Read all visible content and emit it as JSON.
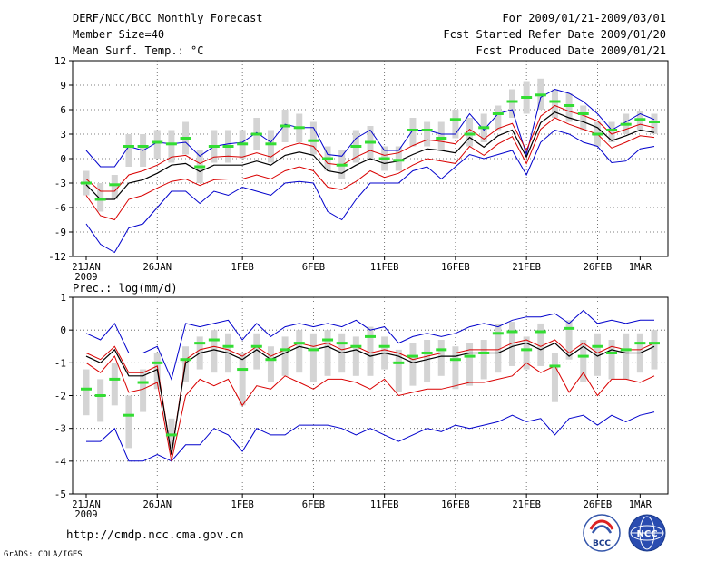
{
  "header": {
    "title": "DERF/NCC/BCC Monthly Forecast",
    "member_size": "Member Size=40",
    "variable": "Mean Surf. Temp.: °C",
    "period": "For 2009/01/21-2009/03/01",
    "started": "Fcst Started Refer Date 2009/01/20",
    "produced": "Fcst Produced Date 2009/01/21"
  },
  "footer": {
    "url": "http://cmdp.ncc.cma.gov.cn",
    "credit": "GrADS: COLA/IGES",
    "logo_bcc": "BCC",
    "logo_ncc": "NCC"
  },
  "colors": {
    "ensemble_mean": "#000000",
    "spread": "#d90000",
    "envelope": "#0000cc",
    "box": "#d4d4d4",
    "median": "#33dd33"
  },
  "chart_data": [
    {
      "type": "line",
      "title": "Mean Surf. Temp.: °C",
      "ylim": [
        -12,
        12
      ],
      "yticks": [
        -12,
        -9,
        -6,
        -3,
        0,
        3,
        6,
        9,
        12
      ],
      "xticks": [
        {
          "day": 0,
          "label": "21JAN",
          "sub": "2009"
        },
        {
          "day": 5,
          "label": "26JAN"
        },
        {
          "day": 11,
          "label": "1FEB"
        },
        {
          "day": 16,
          "label": "6FEB"
        },
        {
          "day": 21,
          "label": "11FEB"
        },
        {
          "day": 26,
          "label": "16FEB"
        },
        {
          "day": 31,
          "label": "21FEB"
        },
        {
          "day": 36,
          "label": "26FEB"
        },
        {
          "day": 39,
          "label": "1MAR"
        }
      ],
      "series": [
        {
          "name": "mean",
          "values": [
            -3.2,
            -5.0,
            -5.0,
            -3.0,
            -2.6,
            -1.8,
            -0.8,
            -0.6,
            -1.6,
            -0.8,
            -0.8,
            -0.8,
            -0.3,
            -0.8,
            0.4,
            0.8,
            0.4,
            -1.5,
            -1.8,
            -0.8,
            0.0,
            -0.6,
            -0.3,
            0.5,
            1.2,
            1.0,
            0.7,
            2.6,
            1.4,
            2.8,
            3.5,
            0.2,
            4.4,
            5.7,
            5.0,
            4.5,
            3.8,
            2.2,
            2.8,
            3.5,
            3.2
          ]
        },
        {
          "name": "upper",
          "values": [
            -2.5,
            -4.0,
            -4.0,
            -2.0,
            -1.5,
            -0.8,
            0.2,
            0.4,
            -0.6,
            0.2,
            0.3,
            0.2,
            0.7,
            0.2,
            1.4,
            1.9,
            1.5,
            -0.6,
            -0.8,
            0.2,
            1.0,
            0.4,
            0.7,
            1.6,
            2.3,
            2.1,
            1.8,
            3.6,
            2.4,
            3.7,
            4.3,
            1.0,
            5.2,
            6.5,
            5.8,
            5.3,
            4.6,
            3.0,
            3.6,
            4.2,
            3.8
          ]
        },
        {
          "name": "lower",
          "values": [
            -4.5,
            -7.0,
            -7.5,
            -5.0,
            -4.5,
            -3.6,
            -2.8,
            -2.5,
            -3.3,
            -2.6,
            -2.5,
            -2.5,
            -2.0,
            -2.5,
            -1.5,
            -1.0,
            -1.5,
            -3.5,
            -3.8,
            -2.8,
            -1.5,
            -2.3,
            -1.8,
            -0.8,
            0.0,
            -0.3,
            -0.6,
            1.5,
            0.4,
            1.8,
            2.7,
            -0.6,
            3.6,
            5.0,
            4.2,
            3.6,
            3.0,
            1.3,
            2.0,
            2.8,
            2.6
          ]
        },
        {
          "name": "max",
          "values": [
            1.0,
            -1.0,
            -1.0,
            1.5,
            1.0,
            2.0,
            1.8,
            2.0,
            0.3,
            1.5,
            1.8,
            2.0,
            3.2,
            2.0,
            4.2,
            3.8,
            3.8,
            0.5,
            0.3,
            2.5,
            3.5,
            1.0,
            1.0,
            3.5,
            3.5,
            3.0,
            3.0,
            5.5,
            3.5,
            5.5,
            6.0,
            0.5,
            7.5,
            8.5,
            8.0,
            7.0,
            5.5,
            3.5,
            4.5,
            5.5,
            4.8
          ]
        },
        {
          "name": "min",
          "values": [
            -8.0,
            -10.5,
            -11.5,
            -8.5,
            -8.0,
            -6.0,
            -4.0,
            -4.0,
            -5.5,
            -4.0,
            -4.5,
            -3.5,
            -4.0,
            -4.5,
            -3.0,
            -2.8,
            -3.0,
            -6.5,
            -7.5,
            -5.0,
            -3.0,
            -3.0,
            -3.0,
            -1.5,
            -1.0,
            -2.5,
            -1.0,
            0.5,
            0.0,
            0.5,
            1.0,
            -2.0,
            2.0,
            3.5,
            3.0,
            2.0,
            1.5,
            -0.5,
            -0.3,
            1.2,
            1.5
          ]
        },
        {
          "name": "median",
          "values": [
            -3.0,
            -5.0,
            -3.2,
            1.5,
            1.5,
            2.0,
            1.8,
            2.5,
            -1.0,
            1.5,
            1.5,
            1.8,
            3.0,
            1.8,
            4.0,
            3.8,
            2.2,
            0.0,
            -0.8,
            1.5,
            2.0,
            0.0,
            -0.2,
            3.5,
            3.5,
            2.5,
            4.8,
            3.0,
            3.8,
            5.5,
            7.0,
            7.5,
            7.8,
            7.0,
            6.5,
            5.5,
            3.0,
            3.5,
            4.2,
            4.8,
            4.5
          ]
        },
        {
          "name": "box_top",
          "values": [
            -1.5,
            -3.0,
            -2.0,
            3.0,
            3.0,
            3.5,
            3.5,
            4.5,
            1.0,
            3.5,
            3.5,
            3.5,
            5.0,
            3.5,
            6.0,
            5.5,
            4.5,
            1.5,
            1.0,
            3.5,
            4.0,
            1.5,
            1.5,
            5.0,
            4.5,
            4.5,
            6.0,
            5.0,
            5.5,
            6.5,
            8.5,
            9.5,
            9.8,
            8.5,
            8.0,
            6.5,
            4.5,
            4.5,
            5.5,
            5.8,
            5.5
          ]
        },
        {
          "name": "box_bottom",
          "values": [
            -4.5,
            -6.5,
            -5.0,
            -1.0,
            -1.0,
            0.0,
            -0.5,
            0.5,
            -3.0,
            -0.5,
            -0.5,
            0.0,
            1.0,
            -0.5,
            2.0,
            2.0,
            0.5,
            -1.5,
            -2.5,
            -0.5,
            0.0,
            -1.5,
            -1.5,
            1.5,
            1.5,
            1.0,
            2.5,
            1.5,
            2.0,
            3.5,
            5.0,
            5.5,
            6.0,
            5.0,
            4.5,
            3.5,
            1.5,
            2.0,
            3.0,
            3.5,
            3.0
          ]
        }
      ]
    },
    {
      "type": "line",
      "title": "Prec.: log(mm/d)",
      "ylim": [
        -5,
        1
      ],
      "yticks": [
        -5,
        -4,
        -3,
        -2,
        -1,
        0,
        1
      ],
      "xticks": [
        {
          "day": 0,
          "label": "21JAN",
          "sub": "2009"
        },
        {
          "day": 5,
          "label": "26JAN"
        },
        {
          "day": 11,
          "label": "1FEB"
        },
        {
          "day": 16,
          "label": "6FEB"
        },
        {
          "day": 21,
          "label": "11FEB"
        },
        {
          "day": 26,
          "label": "16FEB"
        },
        {
          "day": 31,
          "label": "21FEB"
        },
        {
          "day": 36,
          "label": "26FEB"
        },
        {
          "day": 39,
          "label": "1MAR"
        }
      ],
      "series": [
        {
          "name": "mean",
          "values": [
            -0.8,
            -1.0,
            -0.6,
            -1.4,
            -1.4,
            -1.2,
            -3.8,
            -1.0,
            -0.7,
            -0.6,
            -0.7,
            -0.9,
            -0.6,
            -0.9,
            -0.7,
            -0.5,
            -0.6,
            -0.5,
            -0.7,
            -0.6,
            -0.8,
            -0.7,
            -0.8,
            -1.0,
            -0.9,
            -0.8,
            -0.8,
            -0.7,
            -0.7,
            -0.7,
            -0.5,
            -0.4,
            -0.6,
            -0.4,
            -0.8,
            -0.5,
            -0.8,
            -0.6,
            -0.7,
            -0.7,
            -0.5
          ]
        },
        {
          "name": "upper",
          "values": [
            -0.7,
            -0.9,
            -0.5,
            -1.3,
            -1.3,
            -1.1,
            -3.8,
            -0.9,
            -0.6,
            -0.5,
            -0.6,
            -0.8,
            -0.5,
            -0.8,
            -0.6,
            -0.4,
            -0.5,
            -0.4,
            -0.6,
            -0.5,
            -0.7,
            -0.6,
            -0.7,
            -0.9,
            -0.8,
            -0.7,
            -0.7,
            -0.6,
            -0.6,
            -0.6,
            -0.4,
            -0.3,
            -0.5,
            -0.3,
            -0.7,
            -0.4,
            -0.7,
            -0.5,
            -0.6,
            -0.6,
            -0.4
          ]
        },
        {
          "name": "lower",
          "values": [
            -1.0,
            -1.3,
            -0.8,
            -1.9,
            -1.8,
            -1.6,
            -4.0,
            -2.0,
            -1.5,
            -1.7,
            -1.5,
            -2.3,
            -1.7,
            -1.8,
            -1.4,
            -1.6,
            -1.8,
            -1.5,
            -1.5,
            -1.6,
            -1.8,
            -1.5,
            -2.0,
            -1.9,
            -1.8,
            -1.8,
            -1.7,
            -1.6,
            -1.6,
            -1.5,
            -1.4,
            -1.0,
            -1.3,
            -1.1,
            -1.9,
            -1.3,
            -2.0,
            -1.5,
            -1.5,
            -1.6,
            -1.4
          ]
        },
        {
          "name": "max",
          "values": [
            -0.1,
            -0.3,
            0.2,
            -0.7,
            -0.7,
            -0.5,
            -1.5,
            0.2,
            0.1,
            0.2,
            0.3,
            -0.3,
            0.2,
            -0.2,
            0.1,
            0.2,
            0.1,
            0.2,
            0.1,
            0.3,
            0.0,
            0.1,
            -0.4,
            -0.2,
            -0.1,
            -0.2,
            -0.1,
            0.1,
            0.2,
            0.1,
            0.3,
            0.4,
            0.4,
            0.5,
            0.2,
            0.6,
            0.2,
            0.3,
            0.2,
            0.3,
            0.3
          ]
        },
        {
          "name": "min",
          "values": [
            -3.4,
            -3.4,
            -3.0,
            -4.0,
            -4.0,
            -3.8,
            -4.0,
            -3.5,
            -3.5,
            -3.0,
            -3.2,
            -3.7,
            -3.0,
            -3.2,
            -3.2,
            -2.9,
            -2.9,
            -2.9,
            -3.0,
            -3.2,
            -3.0,
            -3.2,
            -3.4,
            -3.2,
            -3.0,
            -3.1,
            -2.9,
            -3.0,
            -2.9,
            -2.8,
            -2.6,
            -2.8,
            -2.7,
            -3.2,
            -2.7,
            -2.6,
            -2.9,
            -2.6,
            -2.8,
            -2.6,
            -2.5
          ]
        },
        {
          "name": "median",
          "values": [
            -1.8,
            -2.0,
            -1.5,
            -2.6,
            -1.6,
            -1.0,
            -3.2,
            -0.9,
            -0.4,
            -0.3,
            -0.5,
            -1.2,
            -0.5,
            -0.9,
            -0.6,
            -0.4,
            -0.6,
            -0.3,
            -0.4,
            -0.5,
            -0.2,
            -0.5,
            -1.0,
            -0.8,
            -0.7,
            -0.6,
            -0.9,
            -0.8,
            -0.7,
            -0.1,
            -0.05,
            -0.6,
            -0.05,
            -1.1,
            0.05,
            -0.8,
            -0.5,
            -0.7,
            -0.6,
            -0.4,
            -0.4
          ]
        },
        {
          "name": "box_top",
          "values": [
            -1.2,
            -1.5,
            -1.0,
            -2.0,
            -1.2,
            -0.7,
            -2.7,
            -0.5,
            -0.2,
            0.0,
            -0.1,
            -0.7,
            -0.1,
            -0.5,
            -0.2,
            0.0,
            -0.1,
            0.0,
            -0.1,
            -0.2,
            0.1,
            -0.2,
            -0.6,
            -0.4,
            -0.3,
            -0.3,
            -0.5,
            -0.4,
            -0.3,
            0.2,
            0.25,
            -0.2,
            0.2,
            -0.7,
            0.3,
            -0.3,
            -0.1,
            -0.3,
            -0.1,
            -0.1,
            0.0
          ]
        },
        {
          "name": "box_bottom",
          "values": [
            -2.6,
            -2.8,
            -2.3,
            -3.6,
            -2.5,
            -1.8,
            -3.6,
            -1.6,
            -1.2,
            -1.3,
            -1.3,
            -2.3,
            -1.2,
            -1.6,
            -1.4,
            -1.3,
            -1.6,
            -1.4,
            -1.3,
            -1.4,
            -1.4,
            -1.2,
            -1.9,
            -1.7,
            -1.6,
            -1.4,
            -1.8,
            -1.7,
            -1.5,
            -1.3,
            -1.1,
            -1.2,
            -1.1,
            -2.2,
            -0.9,
            -1.6,
            -1.4,
            -1.5,
            -1.5,
            -1.3,
            -1.2
          ]
        }
      ]
    }
  ]
}
